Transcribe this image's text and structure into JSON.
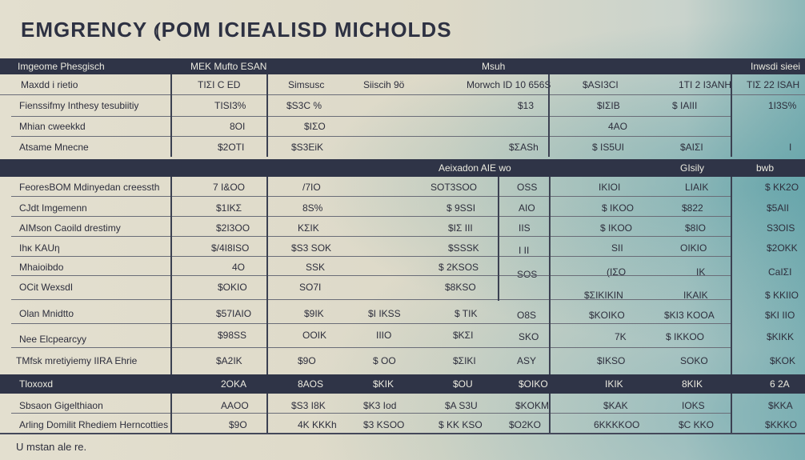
{
  "title": "EMGRENCY  ⦅POM ICIEALISD MICHOLDS",
  "colors": {
    "band": "#2f3447",
    "paper": "#ddd8c6",
    "teal": "#6fa9ad"
  },
  "header": {
    "col0": "Imgeome Phesgisch",
    "col1": "MEK Mufto ESAN",
    "col4": "Msuh",
    "col8": "Inwsdi sieei"
  },
  "header2": {
    "label": "Maxdd i rietio",
    "c1": "TIΣΙ C ED",
    "c2": "Simsusc",
    "c3": "Siiscih 9ö",
    "c4": "Morwch ID 10 656S",
    "c5": "$ASI3CΙ",
    "c6": "1ΤΙ 2 I3ANH",
    "c7": "TIΣ 22 ISAH"
  },
  "section1": [
    {
      "label": "Fienssifmy Inthesy tesubiitiy",
      "c1": "TISI3%",
      "c2": "$S3C %",
      "c4": "$13",
      "c5": "$ΙΣΙΒ",
      "c6": "$ ΙΑΙΙΙ",
      "c7": "1I3S%"
    },
    {
      "label": "Mhian cweekkd",
      "c1": "8OΙ",
      "c2": "$ΙΣO",
      "c5": "4ΑO"
    },
    {
      "label": "Atsame Mnecne",
      "c1": "$2OΤI",
      "c2": "$S3EiΚ",
      "c4": "$ΣASh",
      "c5": "$ ΙS5UΙ",
      "c6": "$ΑΙΣΙ",
      "c7": "I"
    }
  ],
  "band2": {
    "c3": "Aeixadon AIE wo",
    "c6": "GIsily",
    "c7": "bwb"
  },
  "section2": [
    {
      "label": "FeoresBOM Mdinyedan creessth",
      "c1": "7 I&OO",
      "c2": "/7ΙO",
      "c3": "SOT3SOO",
      "c4": "OSS",
      "c5": "IΚIOΙ",
      "c6": "LΙΑΙΚ",
      "c7": "$ ΚΚ2O"
    },
    {
      "label": "CJdt Imgemenn",
      "c1": "$1IΚΣ",
      "c2": "8S%",
      "c3": "$ 9SSΙ",
      "c4": "ΑΙO",
      "c5": "$ ΙΚOO",
      "c6": "$822",
      "c7": "$5ΑIΙ"
    },
    {
      "label": "AIMson Caoild drestimy",
      "c1": "$2I3OO",
      "c2": "ΚΣΙΚ",
      "c3": "$ΙΣ ΙΙΙ",
      "c4": "ΙΙS",
      "c5": "$ ΙΚOO",
      "c6": "$8ΙO",
      "c7": "S3OIS"
    },
    {
      "label": "Ihκ KAUη",
      "c1": "$/4I8ISO",
      "c2": "$S3 SOK",
      "c3": "$SSSK",
      "c4": "Ι ΙΙ",
      "c5": "SΙΙ",
      "c6": "OΙΚΙO",
      "c7": "$2OΚΚ"
    },
    {
      "label": "Mhaioibdo",
      "c1": "4O",
      "c2": "SSK",
      "c3": "$ 2ΚSOS",
      "c4": "SOS",
      "c5": "(ΙΣO",
      "c6": "ΙΚ",
      "c7": "CaΙΣΙ"
    },
    {
      "label": "OCit WexsdΙ",
      "c1": "$OΚΙO",
      "c2": "SO7Ι",
      "c3": "$8ΚSO",
      "c5": "$ΣΙΚΙΚIN",
      "c6": "IΚΑΙΚ",
      "c7": "$ ΚΚΙΙO"
    },
    {
      "label": "Olan Mnidtto",
      "c1": "$57IΑΙO",
      "c2": "$9ΙΚ",
      "c2b": "$Ι ΙΚSS",
      "c3": "$ ΤIΚ",
      "c4": "O8S",
      "c5": "$ΚOIΚO",
      "c6": "$ΚI3 ΚOOΑ",
      "c7": "$ΚΙ ΙΙO"
    },
    {
      "label": "Nee Elcpearcyy",
      "c1": "$98SS",
      "c2": "OOΙΚ",
      "c2b": "ΙΙΙO",
      "c3": "$ΚΣΙ",
      "c4": "SΚO",
      "c5": "7Κ",
      "c6": "$ ΙΚΚOO",
      "c7": "$ΚΙΚΚ"
    },
    {
      "label": "TMfsk mretiyiemy IIRA Ehrie",
      "c1": "$A2IΚ",
      "c2": "$9O",
      "c2b": "$ OO",
      "c3": "$ΣΙΚΙ",
      "c4": "ΑSY",
      "c5": "$ΙΚSO",
      "c6": "SOΚO",
      "c7": "$ΚOΚ"
    }
  ],
  "band3": {
    "label": "Tloxoxd",
    "c1": "2OΚA",
    "c2": "8ΑOS",
    "c2b": "$ΚΙΚ",
    "c3": "$OU",
    "c4": "$OΙΚO",
    "c5": "IΚΙΚ",
    "c6": "8ΚΙΚ",
    "c7": "6 2Α"
  },
  "section3": [
    {
      "label": "Sbsaon Gigelthiaon",
      "c1": "ΑΑOO",
      "c2": "$S3 I8Κ",
      "c2b": "$Κ3 Iod",
      "c3": "$Α S3U",
      "c4": "$ΚOΚM",
      "c5": "$ΚAΚ",
      "c6": "ΙOΚS",
      "c7": "$ΚΚA"
    },
    {
      "label": "Arling Domilit Rhediem Herncotties",
      "c1": "$9O",
      "c2": "4Κ ΚΚΚh",
      "c2b": "$3 ΚSOO",
      "c3": "$ ΚΚ ΚSO",
      "c4": "$O2ΚO",
      "c5": "6ΚΚΚΚOO",
      "c6": "$C ΚΚO",
      "c7": "$ΚΚΚO"
    }
  ],
  "footnote": "U mstan ale re."
}
